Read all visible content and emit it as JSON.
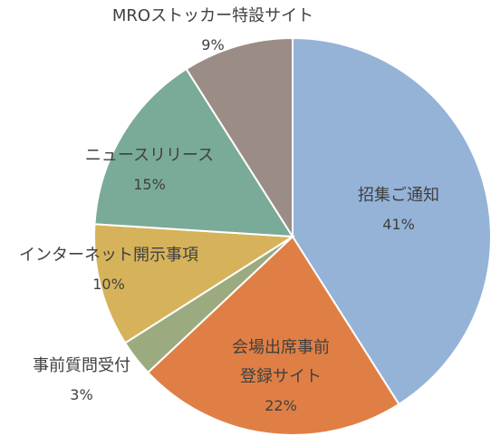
{
  "chart_data": {
    "type": "pie",
    "categories": [
      "招集ご通知",
      "会場出席事前登録サイト",
      "事前質問受付",
      "インターネット開示事項",
      "ニュースリリース",
      "MROストッカー特設サイト"
    ],
    "values": [
      41,
      22,
      3,
      10,
      15,
      9
    ],
    "value_labels": [
      "41%",
      "22%",
      "3%",
      "10%",
      "15%",
      "9%"
    ],
    "colors": [
      "#95b3d7",
      "#e07f45",
      "#9bab7f",
      "#d6b35a",
      "#7aab98",
      "#9b8c86"
    ]
  }
}
